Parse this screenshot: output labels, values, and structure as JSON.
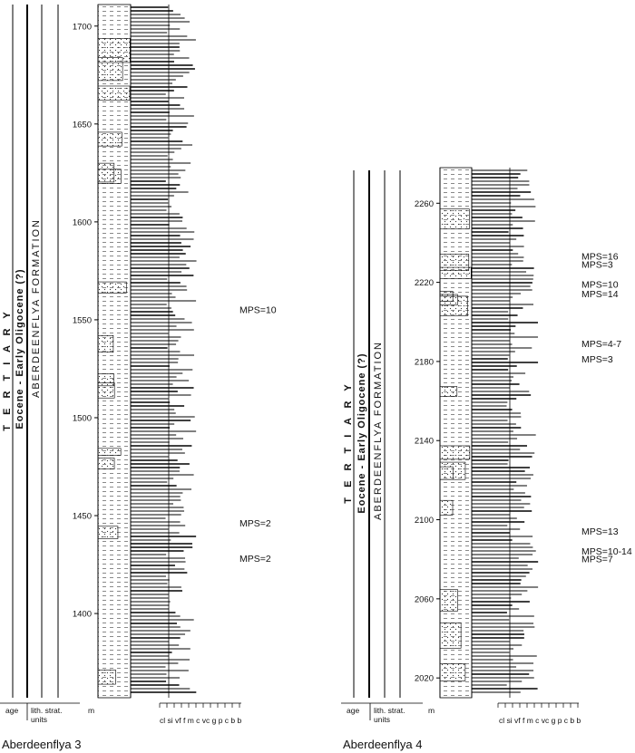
{
  "logs": [
    {
      "caption": "Aberdeenflya 3",
      "age": "T E R T I A R Y",
      "epoch": "Eocene - Early Oligocene (?)",
      "formation": "ABERDEENFLYA FORMATION",
      "footer": {
        "age": "age",
        "lith": "lith. strat.",
        "units": "units",
        "m": "m",
        "grain": "cl si vf f m c vc g p c b b"
      },
      "depth_ticks": [
        1700,
        1650,
        1600,
        1550,
        1500,
        1450,
        1400
      ],
      "depth_range": [
        1357,
        1711
      ],
      "annotations": [
        {
          "text": "MPS=10",
          "depth": 1555
        },
        {
          "text": "MPS=2",
          "depth": 1446
        },
        {
          "text": "MPS=2",
          "depth": 1428
        }
      ]
    },
    {
      "caption": "Aberdeenflya 4",
      "age": "T E R T I A R Y",
      "epoch": "Eocene - Early Oligocene (?)",
      "formation": "ABERDEENFLYA FORMATION",
      "footer": {
        "age": "age",
        "lith": "lith. strat.",
        "units": "units",
        "m": "m",
        "grain": "cl si vf f m c vc g p c b b"
      },
      "depth_ticks": [
        2260,
        2220,
        2180,
        2140,
        2100,
        2060,
        2020
      ],
      "depth_range": [
        2010,
        2278
      ],
      "annotations": [
        {
          "text": "MPS=16",
          "depth": 2233
        },
        {
          "text": "MPS=3",
          "depth": 2229
        },
        {
          "text": "MPS=10",
          "depth": 2219
        },
        {
          "text": "MPS=14",
          "depth": 2214
        },
        {
          "text": "MPS=4-7",
          "depth": 2189
        },
        {
          "text": "MPS=3",
          "depth": 2181
        },
        {
          "text": "MPS=13",
          "depth": 2094
        },
        {
          "text": "MPS=10-14",
          "depth": 2084
        },
        {
          "text": "MPS=7",
          "depth": 2080
        }
      ]
    }
  ]
}
